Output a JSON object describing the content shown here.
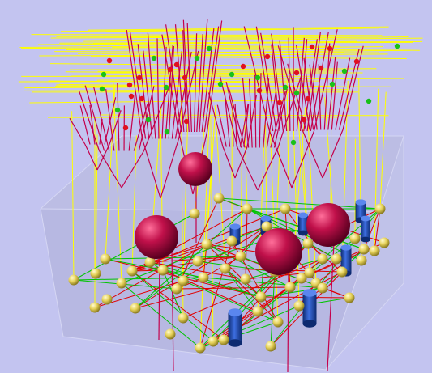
{
  "scene": {
    "background": "#c3c4f0",
    "box_face": "#b7b9dc",
    "box_edge": "#d9daf3",
    "yellow_line": "#ffff00",
    "red_dendrite": "#c4004b",
    "green_link": "#00c400",
    "red_link": "#e00000",
    "sphere_red": "#c0104a",
    "sphere_yellow": "#e6d25a",
    "cylinder_blue": "#1d46a8",
    "small_green": "#19c019",
    "small_red": "#e01020"
  }
}
